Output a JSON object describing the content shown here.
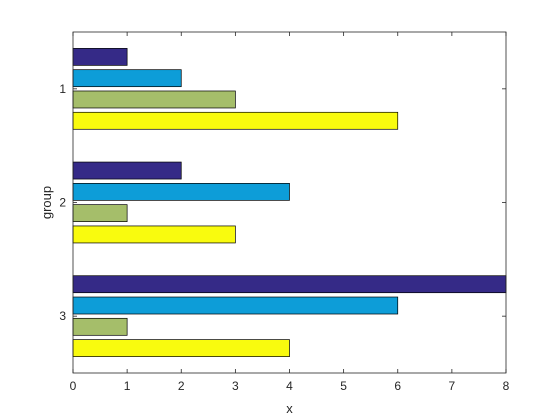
{
  "chart_data": {
    "type": "bar",
    "orientation": "horizontal",
    "categories": [
      "1",
      "2",
      "3"
    ],
    "series": [
      {
        "values": [
          1,
          2,
          8
        ],
        "color": "#352a87"
      },
      {
        "values": [
          2,
          4,
          6
        ],
        "color": "#0d9dd8"
      },
      {
        "values": [
          3,
          1,
          1
        ],
        "color": "#a5be6a"
      },
      {
        "values": [
          6,
          3,
          4
        ],
        "color": "#f9fb0e"
      }
    ],
    "xlabel": "x",
    "ylabel": "group",
    "xlim": [
      0,
      8
    ],
    "xticks": [
      0,
      1,
      2,
      3,
      4,
      5,
      6,
      7,
      8
    ],
    "grid": false,
    "legend": "none"
  }
}
